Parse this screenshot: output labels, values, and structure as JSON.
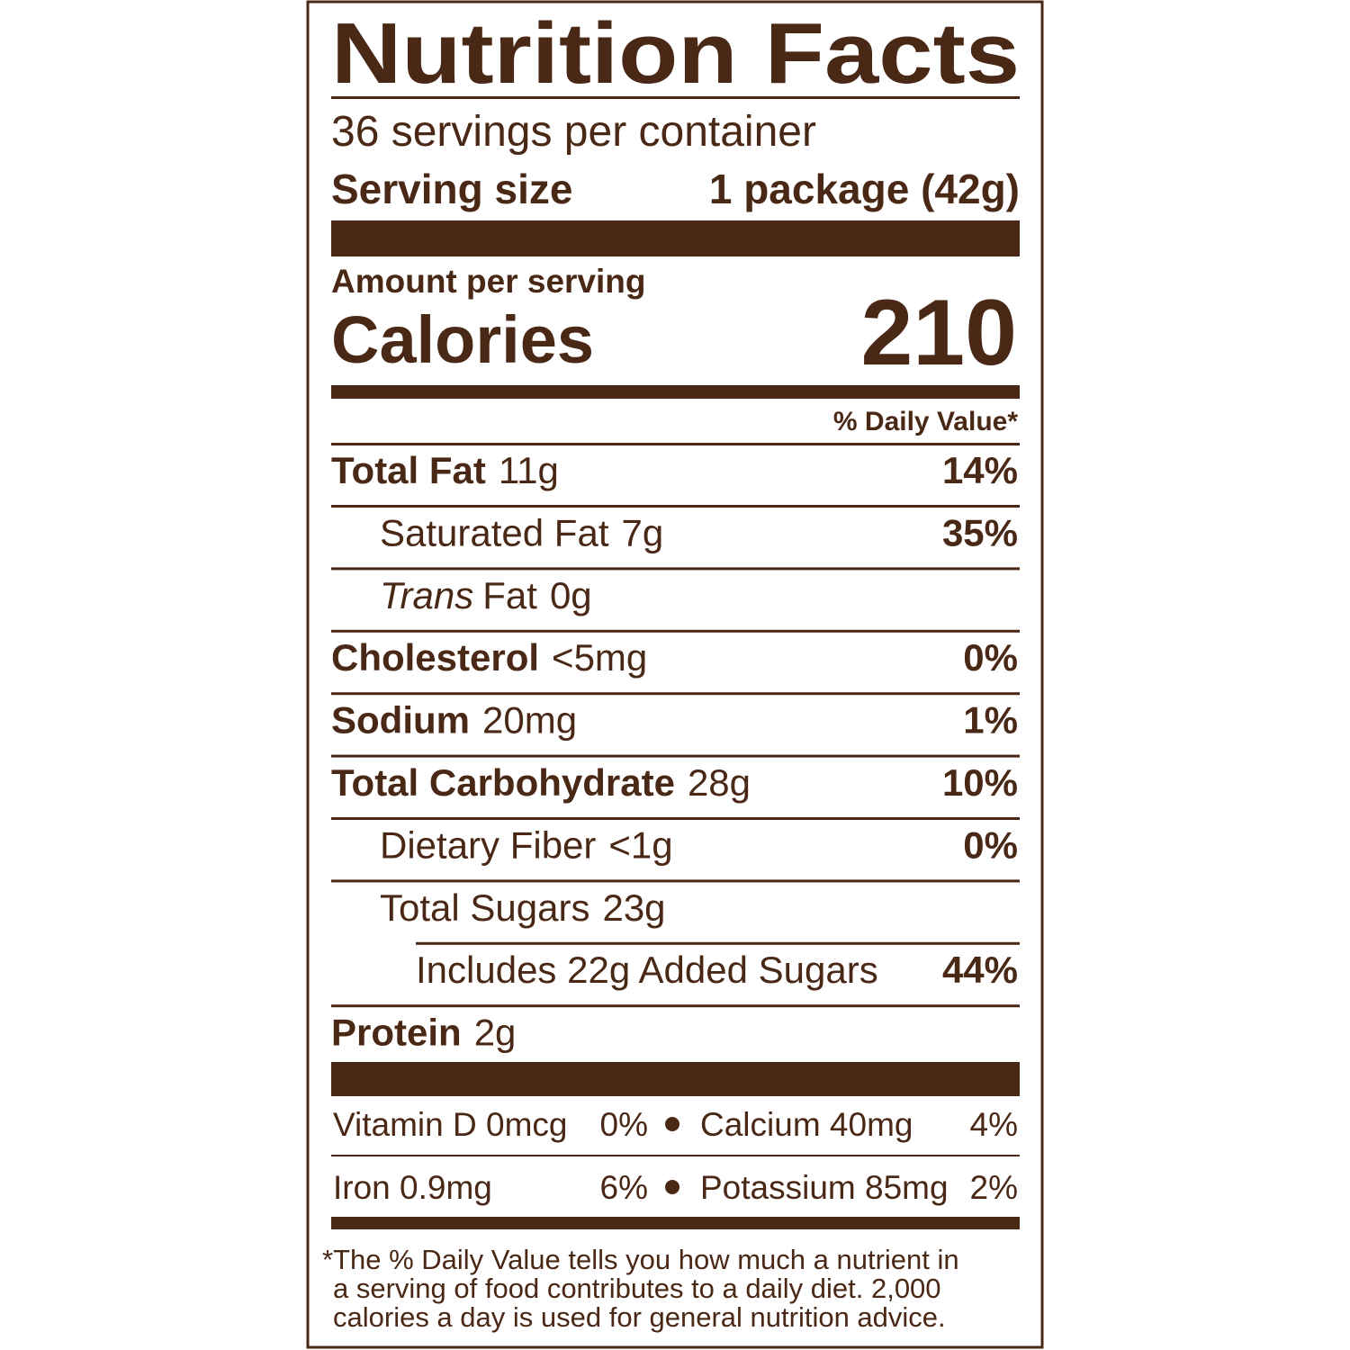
{
  "title": "Nutrition Facts",
  "servings": "36 servings per container",
  "serving_size": {
    "label": "Serving size",
    "value": "1 package (42g)"
  },
  "amount_per_serving": "Amount per serving",
  "calories": {
    "label": "Calories",
    "value": "210"
  },
  "daily_value_header": "% Daily Value*",
  "rows": [
    {
      "name": "Total Fat",
      "amount": "11g",
      "dv": "14%"
    },
    {
      "name": "Saturated Fat",
      "amount": "7g",
      "dv": "35%"
    },
    {
      "name_italic": "Trans",
      "name": "Fat",
      "amount": "0g"
    },
    {
      "name": "Cholesterol",
      "amount": "<5mg",
      "dv": "0%"
    },
    {
      "name": "Sodium",
      "amount": "20mg",
      "dv": "1%"
    },
    {
      "name": "Total Carbohydrate",
      "amount": "28g",
      "dv": "10%"
    },
    {
      "name": "Dietary Fiber",
      "amount": "<1g",
      "dv": "0%"
    },
    {
      "name": "Total Sugars",
      "amount": "23g"
    },
    {
      "name": "Includes 22g Added Sugars",
      "dv": "44%"
    },
    {
      "name": "Protein",
      "amount": "2g"
    }
  ],
  "micronutrients": [
    [
      {
        "name": "Vitamin D 0mcg",
        "dv": "0%"
      },
      {
        "name": "Calcium 40mg",
        "dv": "4%"
      }
    ],
    [
      {
        "name": "Iron 0.9mg",
        "dv": "6%"
      },
      {
        "name": "Potassium 85mg",
        "dv": "2%"
      }
    ]
  ],
  "footnote": [
    "*The % Daily Value tells you how much a nutrient in",
    "a serving of food contributes to a daily diet. 2,000",
    "calories a day is used for general nutrition advice."
  ]
}
